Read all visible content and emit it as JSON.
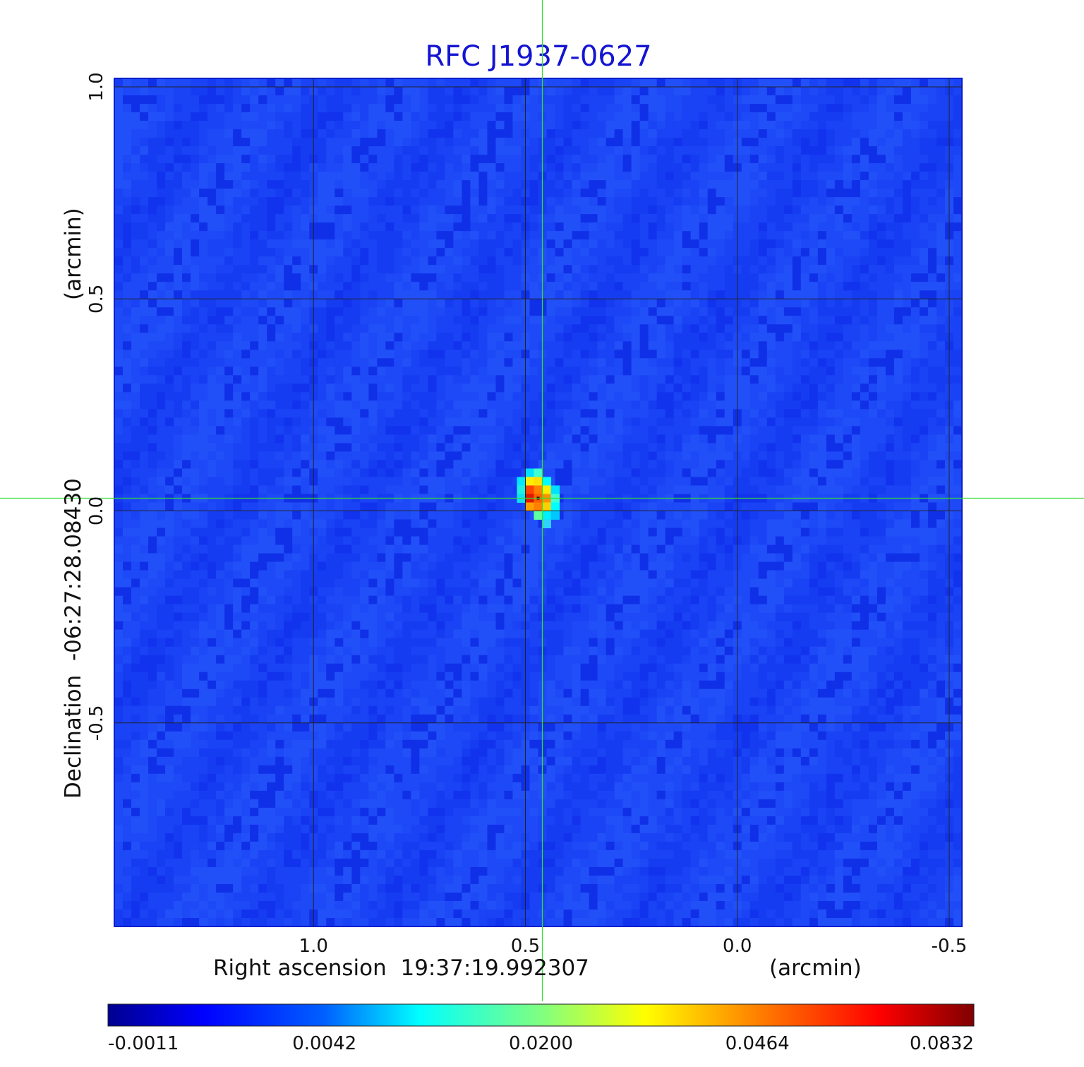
{
  "chart_data": {
    "type": "heatmap",
    "title": "RFC J1937-0627",
    "colormap": "jet",
    "xlabel": "Right ascension  19:37:19.992307",
    "xunit": "(arcmin)",
    "ylabel": "Declination  -06:27:28.08430",
    "yunit": "(arcmin)",
    "xlim": [
      1.47,
      -0.53
    ],
    "ylim": [
      -0.98,
      1.02
    ],
    "x_ticks": [
      1.0,
      0.5,
      0.0,
      -0.5
    ],
    "x_tick_labels": [
      "1.0",
      "0.5",
      "0.0",
      "-0.5"
    ],
    "y_ticks": [
      1.0,
      0.5,
      0.0,
      -0.5
    ],
    "y_tick_labels": [
      "1.0",
      "0.5",
      "0.0",
      "-0.5"
    ],
    "grid": true,
    "crosshair": {
      "x": 0.46,
      "y": 0.03,
      "color": "#33dd33"
    },
    "source": {
      "x": 0.47,
      "y": 0.03,
      "peak": 0.0832
    },
    "colorbar": {
      "orientation": "horizontal",
      "tick_labels": [
        "-0.0011",
        "0.0042",
        "0.0200",
        "0.0464",
        "0.0832"
      ],
      "min": -0.0011,
      "max": 0.0832
    }
  }
}
